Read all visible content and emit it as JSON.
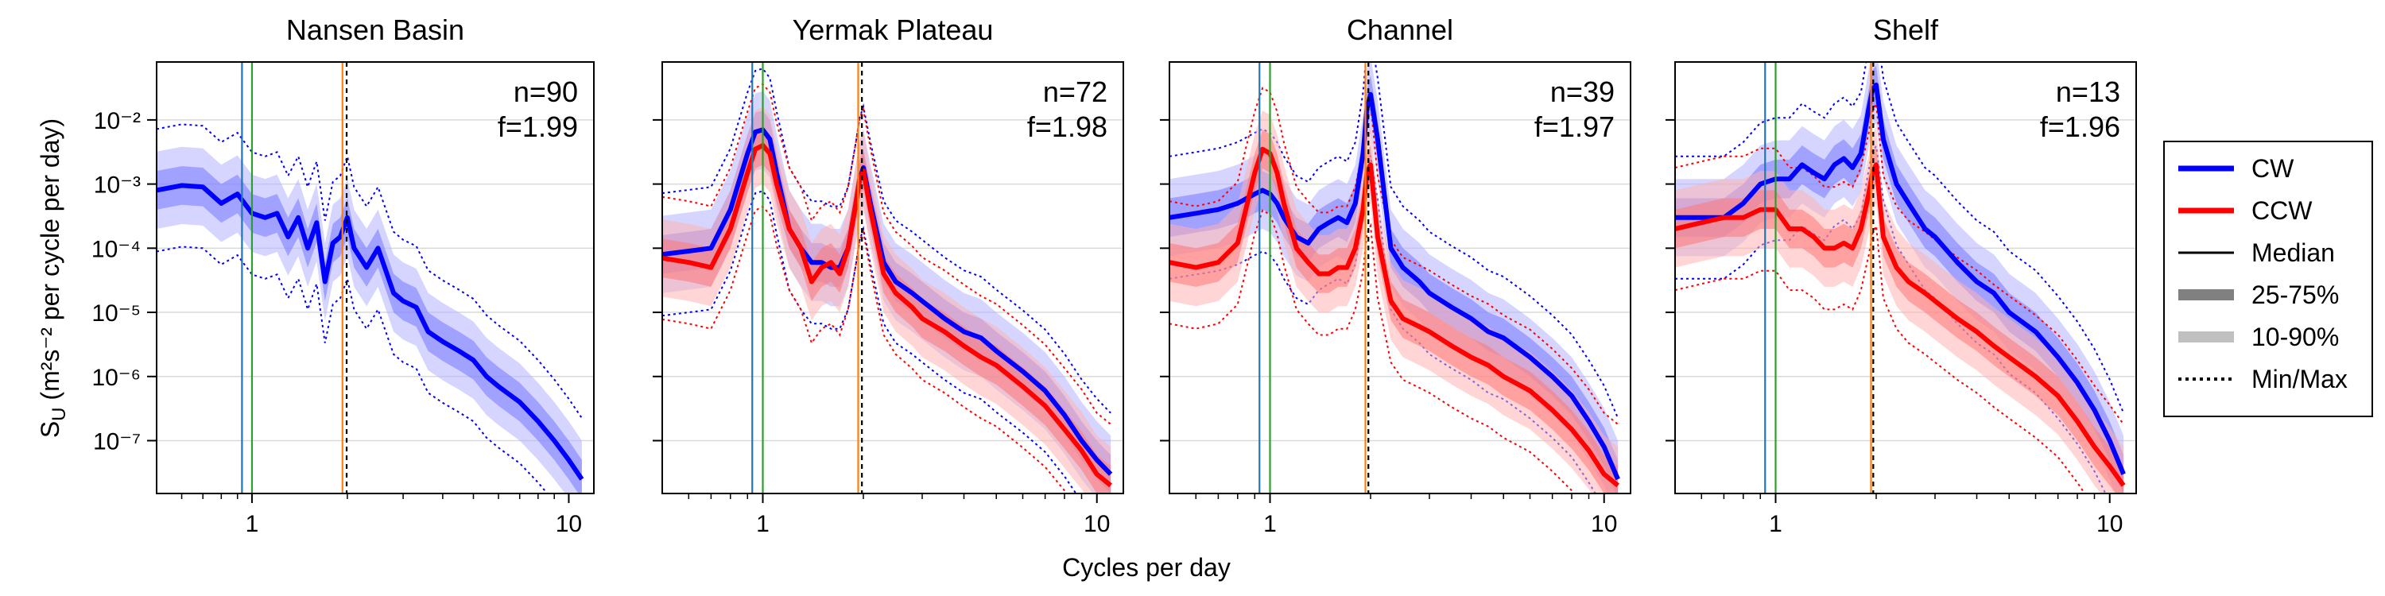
{
  "figure": {
    "xlabel": "Cycles per day",
    "ylabel": "S",
    "ylabel_sub": "U",
    "ylabel_rest": " (m²s⁻² per cycle per day)"
  },
  "legend": {
    "placement": "right",
    "items": [
      {
        "label": "CW",
        "style": "line",
        "color": "#0000ff"
      },
      {
        "label": "CCW",
        "style": "line",
        "color": "#ff0000"
      },
      {
        "label": "Median",
        "style": "thin-line",
        "color": "#000000"
      },
      {
        "label": "25-75%",
        "style": "band",
        "color": "#808080"
      },
      {
        "label": "10-90%",
        "style": "band-light",
        "color": "#c0c0c0"
      },
      {
        "label": "Min/Max",
        "style": "dotted",
        "color": "#000000"
      }
    ]
  },
  "chart_data": [
    {
      "type": "line",
      "title": "Nansen Basin",
      "n_label": "n=90",
      "f_label": "f=1.99",
      "f": 1.99,
      "xscale": "log",
      "yscale": "log",
      "xlim": [
        0.5,
        12
      ],
      "ylim": [
        1.5e-08,
        0.08
      ],
      "xticks": [
        1,
        10
      ],
      "yticks": [
        1e-07,
        1e-06,
        1e-05,
        0.0001,
        0.001,
        0.01
      ],
      "ytick_labels": [
        "10⁻⁷",
        "10⁻⁶",
        "10⁻⁵",
        "10⁻⁴",
        "10⁻³",
        "10⁻²"
      ],
      "show_yticklabels": true,
      "hgrid": true,
      "vlines": [
        {
          "x": 0.93,
          "color": "#1f77b4"
        },
        {
          "x": 1.0,
          "color": "#2ca02c"
        },
        {
          "x": 1.93,
          "color": "#ff7f0e"
        },
        {
          "x": 1.99,
          "color": "#000000",
          "dash": true
        }
      ],
      "series": [
        {
          "name": "CW",
          "color": "#0000ff",
          "x": [
            0.5,
            0.6,
            0.7,
            0.8,
            0.9,
            1.0,
            1.1,
            1.2,
            1.3,
            1.4,
            1.5,
            1.6,
            1.7,
            1.8,
            1.9,
            2.0,
            2.1,
            2.3,
            2.5,
            2.8,
            3.0,
            3.3,
            3.6,
            4.0,
            4.5,
            5.0,
            5.5,
            6.0,
            7.0,
            8.0,
            9.0,
            10.0,
            11.0
          ],
          "median": [
            0.0008,
            0.00095,
            0.0009,
            0.0005,
            0.0007,
            0.00035,
            0.0003,
            0.00035,
            0.00015,
            0.0003,
            0.0001,
            0.00025,
            3e-05,
            0.00012,
            0.00015,
            0.0003,
            0.0001,
            5e-05,
            0.0001,
            2e-05,
            1.5e-05,
            1.2e-05,
            5e-06,
            3.5e-06,
            2.5e-06,
            1.8e-06,
            1e-06,
            7e-07,
            4e-07,
            2e-07,
            1e-07,
            5e-08,
            2.5e-08
          ]
        }
      ]
    },
    {
      "type": "line",
      "title": "Yermak Plateau",
      "n_label": "n=72",
      "f_label": "f=1.98",
      "f": 1.98,
      "xscale": "log",
      "yscale": "log",
      "xlim": [
        0.5,
        12
      ],
      "ylim": [
        1.5e-08,
        0.08
      ],
      "xticks": [
        1,
        10
      ],
      "yticks": [
        1e-07,
        1e-06,
        1e-05,
        0.0001,
        0.001,
        0.01
      ],
      "ytick_labels": [
        "",
        "",
        "",
        "",
        "",
        ""
      ],
      "show_yticklabels": false,
      "hgrid": true,
      "vlines": [
        {
          "x": 0.93,
          "color": "#1f77b4"
        },
        {
          "x": 1.0,
          "color": "#2ca02c"
        },
        {
          "x": 1.93,
          "color": "#ff7f0e"
        },
        {
          "x": 1.98,
          "color": "#000000",
          "dash": true
        }
      ],
      "series": [
        {
          "name": "CW",
          "color": "#0000ff",
          "x": [
            0.5,
            0.6,
            0.7,
            0.8,
            0.9,
            0.95,
            1.0,
            1.05,
            1.1,
            1.2,
            1.3,
            1.4,
            1.5,
            1.6,
            1.7,
            1.8,
            1.9,
            1.95,
            2.0,
            2.1,
            2.3,
            2.5,
            2.8,
            3.0,
            3.5,
            4.0,
            4.5,
            5.0,
            6.0,
            7.0,
            8.0,
            9.0,
            10.0,
            11.0
          ],
          "median": [
            8e-05,
            9e-05,
            0.0001,
            0.0004,
            0.003,
            0.0065,
            0.007,
            0.005,
            0.0015,
            0.0002,
            0.0001,
            6e-05,
            6e-05,
            5e-05,
            5e-05,
            0.0001,
            0.0005,
            0.0012,
            0.0018,
            0.0005,
            6e-05,
            3e-05,
            2e-05,
            1.5e-05,
            8e-06,
            5e-06,
            4e-06,
            2.5e-06,
            1.2e-06,
            6e-07,
            2.5e-07,
            1e-07,
            5e-08,
            3e-08
          ]
        },
        {
          "name": "CCW",
          "color": "#ff0000",
          "x": [
            0.5,
            0.6,
            0.7,
            0.8,
            0.9,
            0.95,
            1.0,
            1.05,
            1.1,
            1.2,
            1.3,
            1.4,
            1.5,
            1.6,
            1.7,
            1.8,
            1.9,
            1.95,
            2.0,
            2.1,
            2.3,
            2.5,
            2.8,
            3.0,
            3.5,
            4.0,
            4.5,
            5.0,
            6.0,
            7.0,
            8.0,
            9.0,
            10.0,
            11.0
          ],
          "median": [
            7e-05,
            6e-05,
            5e-05,
            0.0002,
            0.0015,
            0.0035,
            0.004,
            0.003,
            0.001,
            0.0002,
            0.0001,
            3e-05,
            5e-05,
            6e-05,
            4e-05,
            0.0001,
            0.0005,
            0.0012,
            0.0016,
            0.0004,
            4e-05,
            2e-05,
            1.2e-05,
            8e-06,
            5e-06,
            3e-06,
            2e-06,
            1.5e-06,
            7e-07,
            3.5e-07,
            1.5e-07,
            7e-08,
            3e-08,
            2e-08
          ]
        }
      ]
    },
    {
      "type": "line",
      "title": "Channel",
      "n_label": "n=39",
      "f_label": "f=1.97",
      "f": 1.97,
      "xscale": "log",
      "yscale": "log",
      "xlim": [
        0.5,
        12
      ],
      "ylim": [
        1.5e-08,
        0.08
      ],
      "xticks": [
        1,
        10
      ],
      "yticks": [
        1e-07,
        1e-06,
        1e-05,
        0.0001,
        0.001,
        0.01
      ],
      "ytick_labels": [
        "",
        "",
        "",
        "",
        "",
        ""
      ],
      "show_yticklabels": false,
      "hgrid": true,
      "vlines": [
        {
          "x": 0.93,
          "color": "#1f77b4"
        },
        {
          "x": 1.0,
          "color": "#2ca02c"
        },
        {
          "x": 1.93,
          "color": "#ff7f0e"
        },
        {
          "x": 1.97,
          "color": "#000000",
          "dash": true
        }
      ],
      "series": [
        {
          "name": "CW",
          "color": "#0000ff",
          "x": [
            0.5,
            0.6,
            0.7,
            0.8,
            0.9,
            0.95,
            1.0,
            1.05,
            1.1,
            1.2,
            1.3,
            1.4,
            1.5,
            1.6,
            1.7,
            1.8,
            1.9,
            1.95,
            2.0,
            2.1,
            2.3,
            2.5,
            2.8,
            3.0,
            3.5,
            4.0,
            4.5,
            5.0,
            6.0,
            7.0,
            8.0,
            9.0,
            10.0,
            11.0
          ],
          "median": [
            0.0003,
            0.00035,
            0.0004,
            0.0005,
            0.0007,
            0.0008,
            0.0007,
            0.0005,
            0.0003,
            0.00015,
            0.00012,
            0.0002,
            0.00025,
            0.0003,
            0.00025,
            0.0005,
            0.003,
            0.015,
            0.025,
            0.005,
            0.0001,
            5e-05,
            3e-05,
            2e-05,
            1.2e-05,
            8e-06,
            5e-06,
            4e-06,
            2e-06,
            1e-06,
            5e-07,
            2e-07,
            8e-08,
            2.5e-08
          ]
        },
        {
          "name": "CCW",
          "color": "#ff0000",
          "x": [
            0.5,
            0.6,
            0.7,
            0.8,
            0.9,
            0.95,
            1.0,
            1.05,
            1.1,
            1.2,
            1.3,
            1.4,
            1.5,
            1.6,
            1.7,
            1.8,
            1.9,
            1.95,
            2.0,
            2.1,
            2.3,
            2.5,
            2.8,
            3.0,
            3.5,
            4.0,
            4.5,
            5.0,
            6.0,
            7.0,
            8.0,
            9.0,
            10.0,
            11.0
          ],
          "median": [
            6e-05,
            5e-05,
            6e-05,
            0.00012,
            0.0015,
            0.0035,
            0.003,
            0.0015,
            0.0005,
            0.0001,
            6e-05,
            4e-05,
            4e-05,
            5e-05,
            5e-05,
            0.0001,
            0.0004,
            0.0015,
            0.002,
            0.00015,
            1.5e-05,
            8e-06,
            6e-06,
            5e-06,
            3e-06,
            2e-06,
            1.5e-06,
            1e-06,
            6e-07,
            3e-07,
            1.5e-07,
            7e-08,
            3e-08,
            2e-08
          ]
        }
      ]
    },
    {
      "type": "line",
      "title": "Shelf",
      "n_label": "n=13",
      "f_label": "f=1.96",
      "f": 1.96,
      "xscale": "log",
      "yscale": "log",
      "xlim": [
        0.5,
        12
      ],
      "ylim": [
        1.5e-08,
        0.08
      ],
      "xticks": [
        1,
        10
      ],
      "yticks": [
        1e-07,
        1e-06,
        1e-05,
        0.0001,
        0.001,
        0.01
      ],
      "ytick_labels": [
        "",
        "",
        "",
        "",
        "",
        ""
      ],
      "show_yticklabels": false,
      "hgrid": true,
      "vlines": [
        {
          "x": 0.93,
          "color": "#1f77b4"
        },
        {
          "x": 1.0,
          "color": "#2ca02c"
        },
        {
          "x": 1.93,
          "color": "#ff7f0e"
        },
        {
          "x": 1.96,
          "color": "#000000",
          "dash": true
        }
      ],
      "series": [
        {
          "name": "CW",
          "color": "#0000ff",
          "x": [
            0.5,
            0.6,
            0.7,
            0.8,
            0.9,
            1.0,
            1.1,
            1.2,
            1.3,
            1.4,
            1.5,
            1.6,
            1.7,
            1.8,
            1.9,
            1.95,
            2.0,
            2.1,
            2.3,
            2.5,
            2.8,
            3.0,
            3.5,
            4.0,
            4.5,
            5.0,
            6.0,
            7.0,
            8.0,
            9.0,
            10.0,
            11.0
          ],
          "median": [
            0.0003,
            0.0003,
            0.0003,
            0.0005,
            0.001,
            0.0012,
            0.0012,
            0.002,
            0.0015,
            0.0012,
            0.002,
            0.0025,
            0.0018,
            0.003,
            0.015,
            0.03,
            0.035,
            0.005,
            0.001,
            0.0005,
            0.0002,
            0.00015,
            6e-05,
            3e-05,
            2e-05,
            1e-05,
            5e-06,
            2e-06,
            8e-07,
            3e-07,
            1e-07,
            3e-08
          ]
        },
        {
          "name": "CCW",
          "color": "#ff0000",
          "x": [
            0.5,
            0.6,
            0.7,
            0.8,
            0.9,
            1.0,
            1.1,
            1.2,
            1.3,
            1.4,
            1.5,
            1.6,
            1.7,
            1.8,
            1.9,
            1.95,
            2.0,
            2.1,
            2.3,
            2.5,
            2.8,
            3.0,
            3.5,
            4.0,
            4.5,
            5.0,
            6.0,
            7.0,
            8.0,
            9.0,
            10.0,
            11.0
          ],
          "median": [
            0.0002,
            0.00025,
            0.0003,
            0.0003,
            0.0004,
            0.0004,
            0.0002,
            0.0002,
            0.00015,
            0.0001,
            0.0001,
            0.00012,
            0.0001,
            0.0002,
            0.0007,
            0.0015,
            0.002,
            0.00015,
            5e-05,
            3e-05,
            2e-05,
            1.5e-05,
            8e-06,
            5e-06,
            3e-06,
            2e-06,
            1e-06,
            5e-07,
            2e-07,
            8e-08,
            4e-08,
            2e-08
          ]
        }
      ]
    }
  ]
}
